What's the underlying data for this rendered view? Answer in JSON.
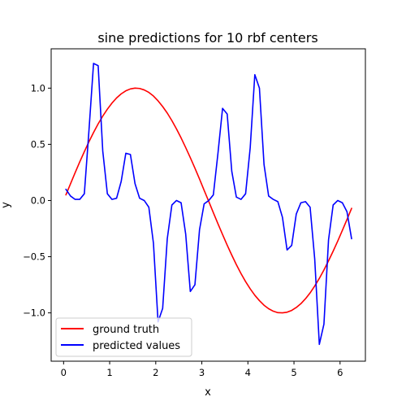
{
  "chart_data": {
    "type": "line",
    "title": "sine predictions for 10 rbf centers",
    "xlabel": "x",
    "ylabel": "y",
    "xlim": [
      -0.27,
      6.55
    ],
    "ylim": [
      -1.43,
      1.35
    ],
    "xticks": [
      0,
      1,
      2,
      3,
      4,
      5,
      6
    ],
    "xtick_labels": [
      "0",
      "1",
      "2",
      "3",
      "4",
      "5",
      "6"
    ],
    "yticks": [
      -1.0,
      -0.5,
      0.0,
      0.5,
      1.0
    ],
    "ytick_labels": [
      "−1.0",
      "−0.5",
      "0.0",
      "0.5",
      "1.0"
    ],
    "grid": false,
    "legend": "lower-left",
    "series": [
      {
        "name": "ground truth",
        "color": "#ff0000",
        "x": [
          0.05,
          0.15,
          0.25,
          0.35,
          0.45,
          0.55,
          0.65,
          0.75,
          0.85,
          0.95,
          1.05,
          1.15,
          1.25,
          1.35,
          1.45,
          1.55,
          1.65,
          1.75,
          1.85,
          1.95,
          2.05,
          2.15,
          2.25,
          2.35,
          2.45,
          2.55,
          2.65,
          2.75,
          2.85,
          2.95,
          3.05,
          3.15,
          3.25,
          3.35,
          3.45,
          3.55,
          3.65,
          3.75,
          3.85,
          3.95,
          4.05,
          4.15,
          4.25,
          4.35,
          4.45,
          4.55,
          4.65,
          4.75,
          4.85,
          4.95,
          5.05,
          5.15,
          5.25,
          5.35,
          5.45,
          5.55,
          5.65,
          5.75,
          5.85,
          5.95,
          6.05,
          6.15,
          6.25
        ],
        "y": [
          0.05,
          0.149,
          0.247,
          0.343,
          0.435,
          0.523,
          0.605,
          0.682,
          0.751,
          0.813,
          0.867,
          0.913,
          0.949,
          0.976,
          0.993,
          1.0,
          0.997,
          0.984,
          0.962,
          0.93,
          0.887,
          0.836,
          0.778,
          0.711,
          0.637,
          0.557,
          0.471,
          0.381,
          0.288,
          0.191,
          0.091,
          -0.008,
          -0.108,
          -0.207,
          -0.303,
          -0.397,
          -0.486,
          -0.571,
          -0.65,
          -0.722,
          -0.786,
          -0.843,
          -0.891,
          -0.932,
          -0.963,
          -0.985,
          -0.998,
          -1.0,
          -0.994,
          -0.978,
          -0.952,
          -0.918,
          -0.874,
          -0.822,
          -0.761,
          -0.693,
          -0.618,
          -0.537,
          -0.451,
          -0.361,
          -0.266,
          -0.169,
          -0.07
        ]
      },
      {
        "name": "predicted values",
        "color": "#0000ff",
        "x": [
          0.05,
          0.15,
          0.25,
          0.35,
          0.45,
          0.55,
          0.65,
          0.75,
          0.85,
          0.95,
          1.05,
          1.15,
          1.25,
          1.35,
          1.45,
          1.55,
          1.65,
          1.75,
          1.85,
          1.95,
          2.05,
          2.15,
          2.25,
          2.35,
          2.45,
          2.55,
          2.65,
          2.75,
          2.85,
          2.95,
          3.05,
          3.15,
          3.25,
          3.35,
          3.45,
          3.55,
          3.65,
          3.75,
          3.85,
          3.95,
          4.05,
          4.15,
          4.25,
          4.35,
          4.45,
          4.55,
          4.65,
          4.75,
          4.85,
          4.95,
          5.05,
          5.15,
          5.25,
          5.35,
          5.45,
          5.55,
          5.65,
          5.75,
          5.85,
          5.95,
          6.05,
          6.15,
          6.25
        ],
        "y": [
          0.1,
          0.04,
          0.01,
          0.01,
          0.06,
          0.62,
          1.22,
          1.2,
          0.44,
          0.06,
          0.01,
          0.02,
          0.17,
          0.42,
          0.41,
          0.15,
          0.02,
          0.0,
          -0.06,
          -0.38,
          -1.08,
          -0.96,
          -0.34,
          -0.04,
          0.0,
          -0.02,
          -0.3,
          -0.81,
          -0.75,
          -0.26,
          -0.03,
          0.0,
          0.05,
          0.42,
          0.82,
          0.77,
          0.26,
          0.03,
          0.01,
          0.06,
          0.47,
          1.12,
          1.0,
          0.32,
          0.04,
          0.01,
          -0.01,
          -0.15,
          -0.44,
          -0.4,
          -0.12,
          -0.02,
          -0.01,
          -0.06,
          -0.52,
          -1.28,
          -1.1,
          -0.35,
          -0.04,
          0.0,
          -0.02,
          -0.1,
          -0.34
        ]
      }
    ]
  }
}
